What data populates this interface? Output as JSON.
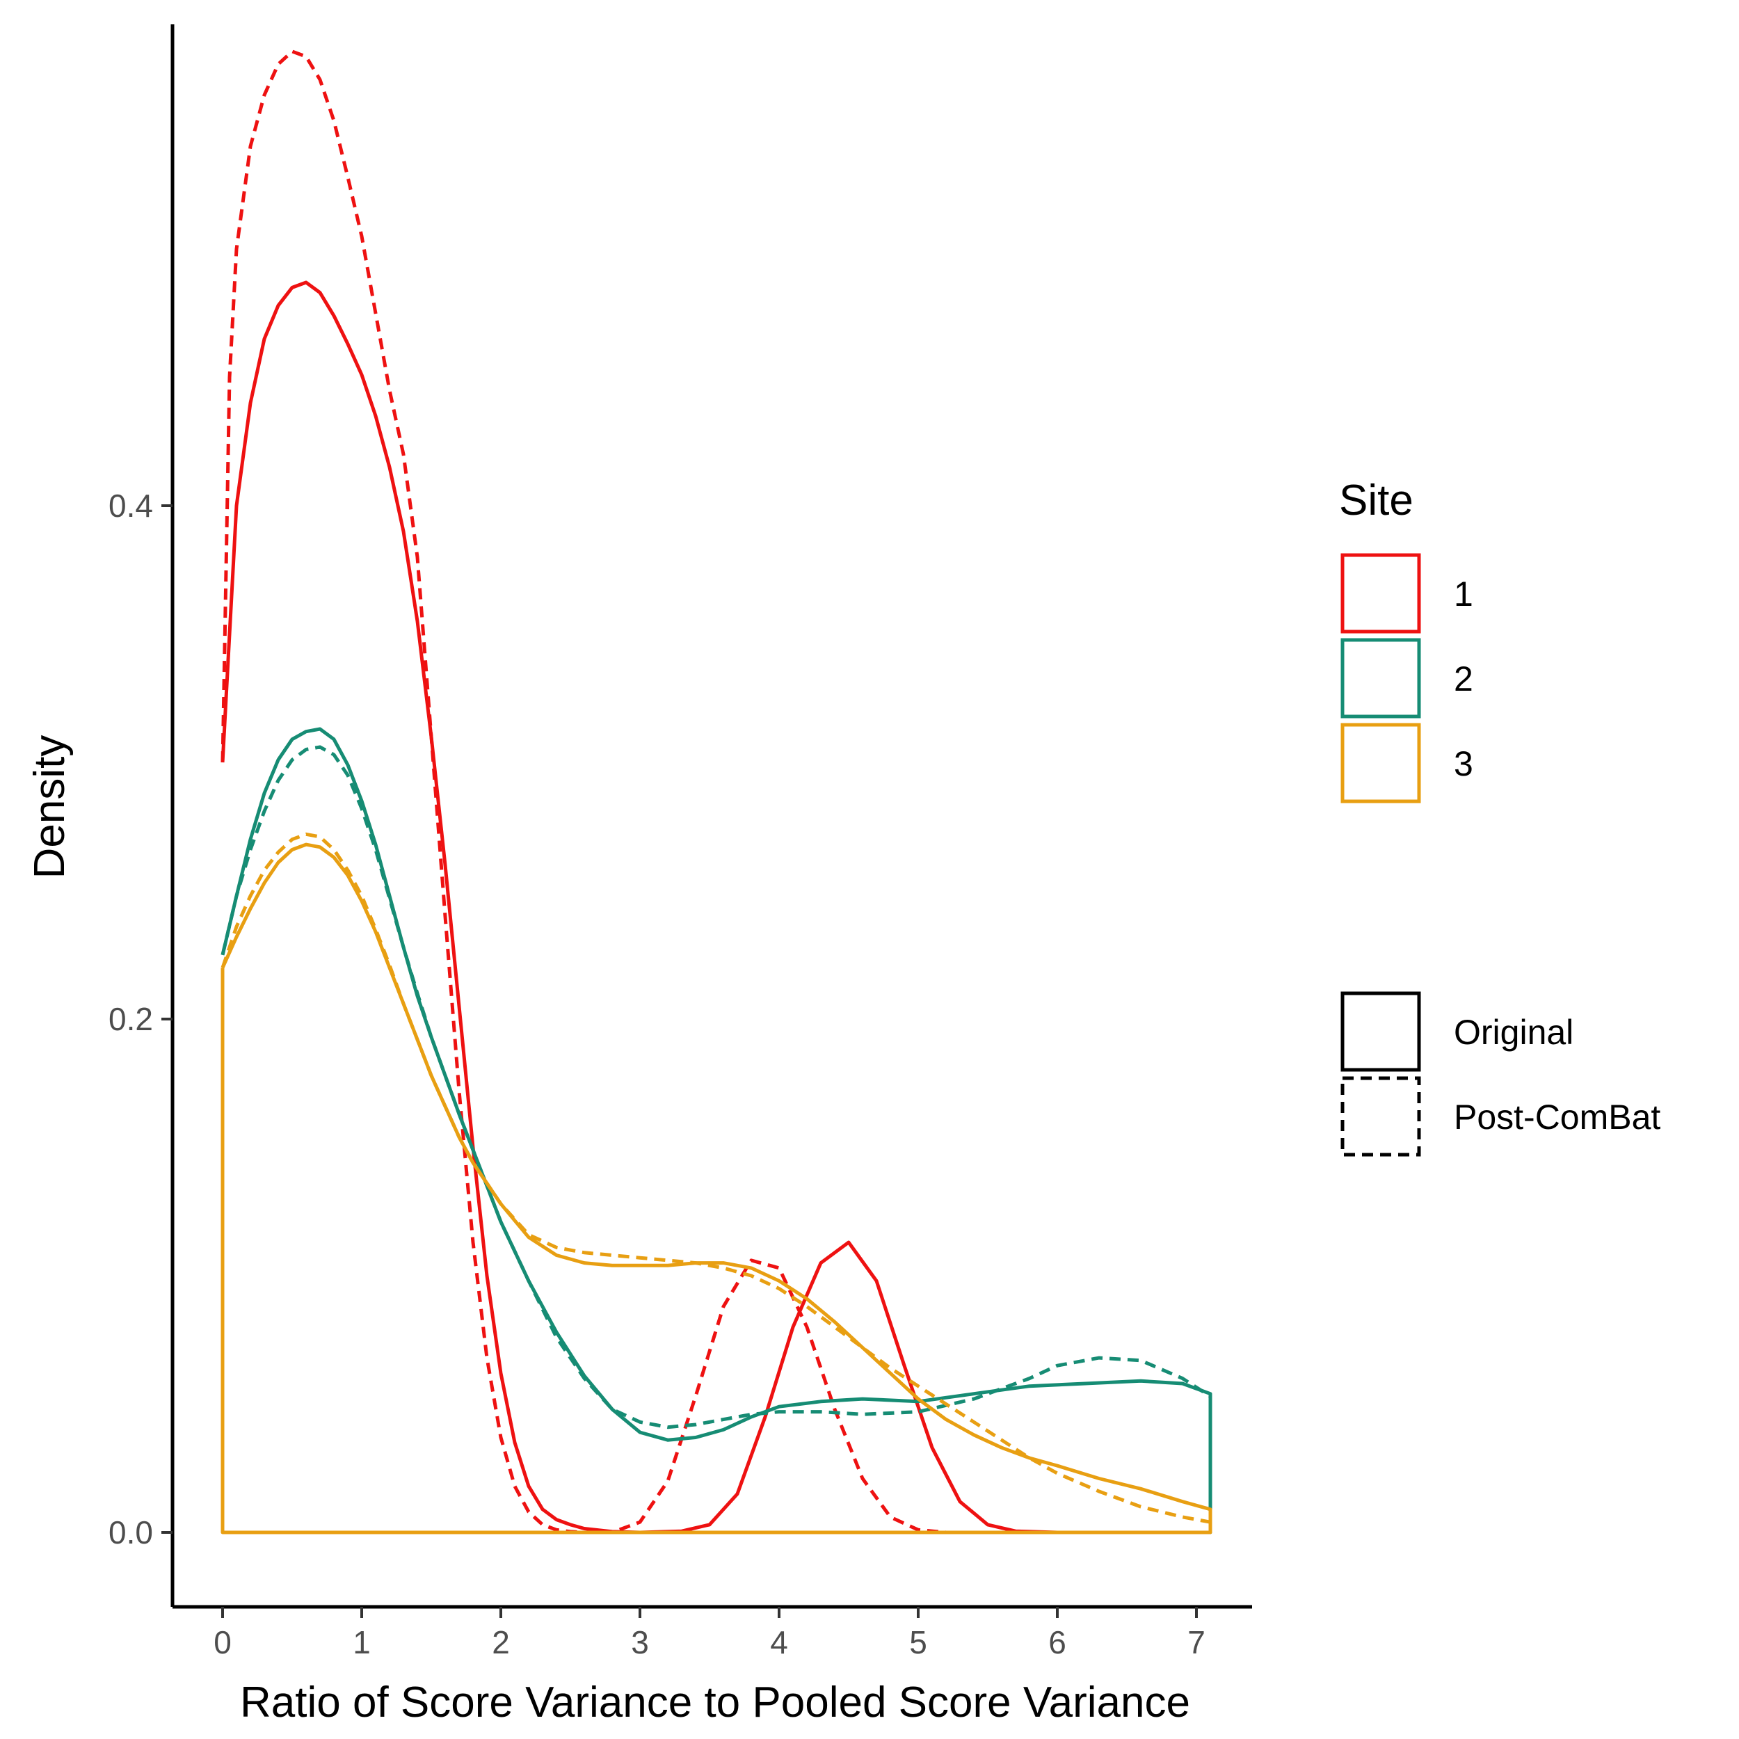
{
  "chart_data": {
    "type": "line",
    "xlabel": "Ratio of Score Variance to Pooled Score Variance",
    "ylabel": "Density",
    "xlim": [
      -0.3,
      7.4
    ],
    "ylim": [
      -0.028,
      0.59
    ],
    "x_ticks": [
      0,
      1,
      2,
      3,
      4,
      5,
      6,
      7
    ],
    "x_tick_labels": [
      "0",
      "1",
      "2",
      "3",
      "4",
      "5",
      "6",
      "7"
    ],
    "y_ticks": [
      0.0,
      0.2,
      0.4
    ],
    "y_tick_labels": [
      "0.0",
      "0.2",
      "0.4"
    ],
    "grid": false,
    "legend_position": "right",
    "legend": {
      "color_title": "Site",
      "color_entries": [
        {
          "label": "1",
          "color": "#ee1111"
        },
        {
          "label": "2",
          "color": "#168c74"
        },
        {
          "label": "3",
          "color": "#e89f12"
        }
      ],
      "linetype_entries": [
        {
          "label": "Original",
          "linetype": "solid"
        },
        {
          "label": "Post-ComBat",
          "linetype": "dashed"
        }
      ]
    },
    "series": [
      {
        "site": "1",
        "linetype": "solid",
        "color": "#ee1111",
        "x_range": [
          0,
          7.1
        ],
        "points": [
          [
            0.0,
            0.3
          ],
          [
            0.1,
            0.4
          ],
          [
            0.2,
            0.44
          ],
          [
            0.3,
            0.465
          ],
          [
            0.4,
            0.478
          ],
          [
            0.5,
            0.485
          ],
          [
            0.6,
            0.487
          ],
          [
            0.7,
            0.483
          ],
          [
            0.8,
            0.474
          ],
          [
            0.9,
            0.463
          ],
          [
            1.0,
            0.451
          ],
          [
            1.1,
            0.435
          ],
          [
            1.2,
            0.415
          ],
          [
            1.3,
            0.39
          ],
          [
            1.4,
            0.355
          ],
          [
            1.5,
            0.31
          ],
          [
            1.6,
            0.26
          ],
          [
            1.7,
            0.205
          ],
          [
            1.8,
            0.15
          ],
          [
            1.9,
            0.1
          ],
          [
            2.0,
            0.062
          ],
          [
            2.1,
            0.035
          ],
          [
            2.2,
            0.018
          ],
          [
            2.3,
            0.009
          ],
          [
            2.4,
            0.005
          ],
          [
            2.5,
            0.003
          ],
          [
            2.6,
            0.0015
          ],
          [
            2.8,
            0.0003
          ],
          [
            3.0,
            0.0
          ],
          [
            3.3,
            0.0005
          ],
          [
            3.5,
            0.003
          ],
          [
            3.7,
            0.015
          ],
          [
            3.9,
            0.045
          ],
          [
            4.1,
            0.08
          ],
          [
            4.3,
            0.105
          ],
          [
            4.5,
            0.113
          ],
          [
            4.7,
            0.098
          ],
          [
            4.9,
            0.065
          ],
          [
            5.1,
            0.033
          ],
          [
            5.3,
            0.012
          ],
          [
            5.5,
            0.003
          ],
          [
            5.7,
            0.0005
          ],
          [
            6.0,
            0.0
          ],
          [
            7.1,
            0.0
          ]
        ]
      },
      {
        "site": "1",
        "linetype": "dashed",
        "color": "#ee1111",
        "x_range": [
          0,
          7.1
        ],
        "points": [
          [
            0.0,
            0.3
          ],
          [
            0.05,
            0.45
          ],
          [
            0.1,
            0.5
          ],
          [
            0.2,
            0.54
          ],
          [
            0.3,
            0.56
          ],
          [
            0.4,
            0.572
          ],
          [
            0.5,
            0.577
          ],
          [
            0.6,
            0.575
          ],
          [
            0.7,
            0.566
          ],
          [
            0.8,
            0.55
          ],
          [
            0.9,
            0.528
          ],
          [
            1.0,
            0.505
          ],
          [
            1.1,
            0.475
          ],
          [
            1.2,
            0.445
          ],
          [
            1.3,
            0.42
          ],
          [
            1.4,
            0.38
          ],
          [
            1.5,
            0.31
          ],
          [
            1.6,
            0.24
          ],
          [
            1.7,
            0.172
          ],
          [
            1.8,
            0.113
          ],
          [
            1.9,
            0.068
          ],
          [
            2.0,
            0.037
          ],
          [
            2.1,
            0.018
          ],
          [
            2.2,
            0.008
          ],
          [
            2.3,
            0.003
          ],
          [
            2.4,
            0.001
          ],
          [
            2.5,
            0.0003
          ],
          [
            2.6,
            0.0
          ],
          [
            2.8,
            0.0
          ],
          [
            3.0,
            0.004
          ],
          [
            3.2,
            0.02
          ],
          [
            3.4,
            0.053
          ],
          [
            3.6,
            0.088
          ],
          [
            3.8,
            0.106
          ],
          [
            4.0,
            0.103
          ],
          [
            4.2,
            0.08
          ],
          [
            4.4,
            0.048
          ],
          [
            4.6,
            0.021
          ],
          [
            4.8,
            0.006
          ],
          [
            5.0,
            0.001
          ],
          [
            5.2,
            0.0
          ],
          [
            7.1,
            0.0
          ]
        ]
      },
      {
        "site": "2",
        "linetype": "solid",
        "color": "#168c74",
        "x_range": [
          0,
          7.1
        ],
        "points": [
          [
            0.0,
            0.225
          ],
          [
            0.1,
            0.248
          ],
          [
            0.2,
            0.27
          ],
          [
            0.3,
            0.288
          ],
          [
            0.4,
            0.301
          ],
          [
            0.5,
            0.309
          ],
          [
            0.6,
            0.312
          ],
          [
            0.7,
            0.313
          ],
          [
            0.8,
            0.309
          ],
          [
            0.9,
            0.299
          ],
          [
            1.0,
            0.285
          ],
          [
            1.1,
            0.268
          ],
          [
            1.2,
            0.248
          ],
          [
            1.3,
            0.228
          ],
          [
            1.4,
            0.209
          ],
          [
            1.5,
            0.193
          ],
          [
            1.6,
            0.178
          ],
          [
            1.7,
            0.163
          ],
          [
            1.8,
            0.149
          ],
          [
            1.9,
            0.135
          ],
          [
            2.0,
            0.121
          ],
          [
            2.2,
            0.098
          ],
          [
            2.4,
            0.078
          ],
          [
            2.6,
            0.061
          ],
          [
            2.8,
            0.048
          ],
          [
            3.0,
            0.039
          ],
          [
            3.2,
            0.036
          ],
          [
            3.4,
            0.037
          ],
          [
            3.6,
            0.04
          ],
          [
            3.8,
            0.045
          ],
          [
            4.0,
            0.049
          ],
          [
            4.3,
            0.051
          ],
          [
            4.6,
            0.052
          ],
          [
            5.0,
            0.051
          ],
          [
            5.4,
            0.054
          ],
          [
            5.8,
            0.057
          ],
          [
            6.2,
            0.058
          ],
          [
            6.6,
            0.059
          ],
          [
            6.9,
            0.058
          ],
          [
            7.1,
            0.054
          ],
          [
            7.1,
            0.0
          ],
          [
            0.0,
            0.0
          ]
        ]
      },
      {
        "site": "2",
        "linetype": "dashed",
        "color": "#168c74",
        "x_range": [
          0,
          7.1
        ],
        "points": [
          [
            0.0,
            0.225
          ],
          [
            0.1,
            0.248
          ],
          [
            0.2,
            0.266
          ],
          [
            0.3,
            0.281
          ],
          [
            0.4,
            0.293
          ],
          [
            0.5,
            0.301
          ],
          [
            0.6,
            0.305
          ],
          [
            0.7,
            0.306
          ],
          [
            0.8,
            0.303
          ],
          [
            0.9,
            0.295
          ],
          [
            1.0,
            0.282
          ],
          [
            1.1,
            0.266
          ],
          [
            1.2,
            0.247
          ],
          [
            1.3,
            0.228
          ],
          [
            1.4,
            0.21
          ],
          [
            1.5,
            0.193
          ],
          [
            1.6,
            0.178
          ],
          [
            1.7,
            0.163
          ],
          [
            1.8,
            0.149
          ],
          [
            1.9,
            0.135
          ],
          [
            2.0,
            0.121
          ],
          [
            2.2,
            0.098
          ],
          [
            2.4,
            0.076
          ],
          [
            2.6,
            0.06
          ],
          [
            2.8,
            0.048
          ],
          [
            3.0,
            0.043
          ],
          [
            3.2,
            0.041
          ],
          [
            3.4,
            0.042
          ],
          [
            3.6,
            0.044
          ],
          [
            3.8,
            0.046
          ],
          [
            4.0,
            0.047
          ],
          [
            4.3,
            0.047
          ],
          [
            4.6,
            0.046
          ],
          [
            5.0,
            0.047
          ],
          [
            5.4,
            0.052
          ],
          [
            5.8,
            0.06
          ],
          [
            6.0,
            0.065
          ],
          [
            6.3,
            0.068
          ],
          [
            6.6,
            0.067
          ],
          [
            6.9,
            0.06
          ],
          [
            7.1,
            0.053
          ]
        ]
      },
      {
        "site": "3",
        "linetype": "solid",
        "color": "#e89f12",
        "x_range": [
          0,
          7.1
        ],
        "points": [
          [
            0.0,
            0.22
          ],
          [
            0.1,
            0.232
          ],
          [
            0.2,
            0.243
          ],
          [
            0.3,
            0.253
          ],
          [
            0.4,
            0.261
          ],
          [
            0.5,
            0.266
          ],
          [
            0.6,
            0.268
          ],
          [
            0.7,
            0.267
          ],
          [
            0.8,
            0.263
          ],
          [
            0.9,
            0.256
          ],
          [
            1.0,
            0.246
          ],
          [
            1.1,
            0.234
          ],
          [
            1.2,
            0.22
          ],
          [
            1.3,
            0.206
          ],
          [
            1.4,
            0.192
          ],
          [
            1.5,
            0.178
          ],
          [
            1.6,
            0.166
          ],
          [
            1.7,
            0.154
          ],
          [
            1.8,
            0.144
          ],
          [
            1.9,
            0.136
          ],
          [
            2.0,
            0.128
          ],
          [
            2.2,
            0.115
          ],
          [
            2.4,
            0.108
          ],
          [
            2.6,
            0.105
          ],
          [
            2.8,
            0.104
          ],
          [
            3.0,
            0.104
          ],
          [
            3.2,
            0.104
          ],
          [
            3.4,
            0.105
          ],
          [
            3.6,
            0.105
          ],
          [
            3.8,
            0.103
          ],
          [
            4.0,
            0.098
          ],
          [
            4.2,
            0.091
          ],
          [
            4.4,
            0.082
          ],
          [
            4.6,
            0.072
          ],
          [
            4.8,
            0.062
          ],
          [
            5.0,
            0.052
          ],
          [
            5.2,
            0.044
          ],
          [
            5.4,
            0.038
          ],
          [
            5.6,
            0.033
          ],
          [
            5.8,
            0.029
          ],
          [
            6.0,
            0.026
          ],
          [
            6.3,
            0.021
          ],
          [
            6.6,
            0.017
          ],
          [
            6.9,
            0.012
          ],
          [
            7.1,
            0.009
          ],
          [
            7.1,
            0.0
          ],
          [
            0.0,
            0.0
          ],
          [
            0.0,
            0.22
          ]
        ]
      },
      {
        "site": "3",
        "linetype": "dashed",
        "color": "#e89f12",
        "x_range": [
          0,
          7.1
        ],
        "points": [
          [
            0.0,
            0.22
          ],
          [
            0.1,
            0.236
          ],
          [
            0.2,
            0.248
          ],
          [
            0.3,
            0.258
          ],
          [
            0.4,
            0.265
          ],
          [
            0.5,
            0.27
          ],
          [
            0.6,
            0.272
          ],
          [
            0.7,
            0.271
          ],
          [
            0.8,
            0.266
          ],
          [
            0.9,
            0.258
          ],
          [
            1.0,
            0.248
          ],
          [
            1.1,
            0.235
          ],
          [
            1.2,
            0.221
          ],
          [
            1.3,
            0.206
          ],
          [
            1.4,
            0.192
          ],
          [
            1.5,
            0.178
          ],
          [
            1.6,
            0.166
          ],
          [
            1.7,
            0.154
          ],
          [
            1.8,
            0.144
          ],
          [
            1.9,
            0.136
          ],
          [
            2.0,
            0.128
          ],
          [
            2.2,
            0.116
          ],
          [
            2.4,
            0.111
          ],
          [
            2.6,
            0.109
          ],
          [
            2.8,
            0.108
          ],
          [
            3.0,
            0.107
          ],
          [
            3.2,
            0.106
          ],
          [
            3.4,
            0.105
          ],
          [
            3.6,
            0.103
          ],
          [
            3.8,
            0.1
          ],
          [
            4.0,
            0.095
          ],
          [
            4.2,
            0.088
          ],
          [
            4.4,
            0.08
          ],
          [
            4.6,
            0.072
          ],
          [
            4.8,
            0.064
          ],
          [
            5.0,
            0.057
          ],
          [
            5.2,
            0.05
          ],
          [
            5.4,
            0.043
          ],
          [
            5.6,
            0.036
          ],
          [
            5.8,
            0.029
          ],
          [
            6.0,
            0.023
          ],
          [
            6.3,
            0.016
          ],
          [
            6.6,
            0.01
          ],
          [
            6.9,
            0.006
          ],
          [
            7.1,
            0.004
          ]
        ]
      }
    ]
  }
}
